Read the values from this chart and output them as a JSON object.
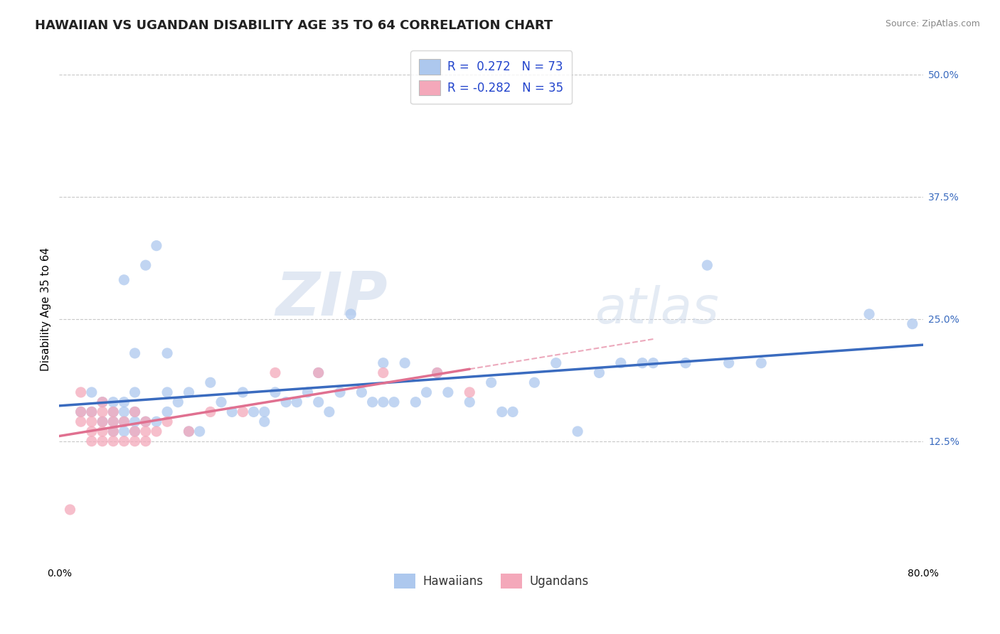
{
  "title": "HAWAIIAN VS UGANDAN DISABILITY AGE 35 TO 64 CORRELATION CHART",
  "source": "Source: ZipAtlas.com",
  "ylabel": "Disability Age 35 to 64",
  "xlim": [
    0.0,
    0.8
  ],
  "ylim": [
    0.0,
    0.52
  ],
  "yticks_right": [
    0.0,
    0.125,
    0.25,
    0.375,
    0.5
  ],
  "yticklabels_right": [
    "",
    "12.5%",
    "25.0%",
    "37.5%",
    "50.0%"
  ],
  "hawaiian_color": "#adc8ee",
  "ugandan_color": "#f4a8ba",
  "hawaiian_line_color": "#3a6bbf",
  "ugandan_line_color": "#e07090",
  "hawaiian_R": 0.272,
  "hawaiian_N": 73,
  "ugandan_R": -0.282,
  "ugandan_N": 35,
  "background_color": "#ffffff",
  "grid_color": "#c8c8c8",
  "watermark_color": "#d0d8e8",
  "hawaiian_scatter_x": [
    0.02,
    0.03,
    0.03,
    0.04,
    0.04,
    0.05,
    0.05,
    0.05,
    0.05,
    0.06,
    0.06,
    0.06,
    0.06,
    0.06,
    0.07,
    0.07,
    0.07,
    0.07,
    0.07,
    0.08,
    0.08,
    0.09,
    0.09,
    0.1,
    0.1,
    0.1,
    0.11,
    0.12,
    0.12,
    0.13,
    0.14,
    0.15,
    0.16,
    0.17,
    0.18,
    0.19,
    0.19,
    0.2,
    0.21,
    0.22,
    0.23,
    0.24,
    0.24,
    0.25,
    0.26,
    0.27,
    0.28,
    0.29,
    0.3,
    0.3,
    0.31,
    0.32,
    0.33,
    0.34,
    0.35,
    0.36,
    0.38,
    0.4,
    0.41,
    0.42,
    0.44,
    0.46,
    0.48,
    0.5,
    0.52,
    0.54,
    0.55,
    0.58,
    0.6,
    0.62,
    0.65,
    0.75,
    0.79
  ],
  "hawaiian_scatter_y": [
    0.155,
    0.155,
    0.175,
    0.145,
    0.165,
    0.135,
    0.145,
    0.155,
    0.165,
    0.135,
    0.145,
    0.155,
    0.165,
    0.29,
    0.135,
    0.145,
    0.155,
    0.175,
    0.215,
    0.145,
    0.305,
    0.145,
    0.325,
    0.155,
    0.175,
    0.215,
    0.165,
    0.135,
    0.175,
    0.135,
    0.185,
    0.165,
    0.155,
    0.175,
    0.155,
    0.145,
    0.155,
    0.175,
    0.165,
    0.165,
    0.175,
    0.165,
    0.195,
    0.155,
    0.175,
    0.255,
    0.175,
    0.165,
    0.165,
    0.205,
    0.165,
    0.205,
    0.165,
    0.175,
    0.195,
    0.175,
    0.165,
    0.185,
    0.155,
    0.155,
    0.185,
    0.205,
    0.135,
    0.195,
    0.205,
    0.205,
    0.205,
    0.205,
    0.305,
    0.205,
    0.205,
    0.255,
    0.245
  ],
  "ugandan_scatter_x": [
    0.01,
    0.02,
    0.02,
    0.02,
    0.03,
    0.03,
    0.03,
    0.03,
    0.04,
    0.04,
    0.04,
    0.04,
    0.04,
    0.05,
    0.05,
    0.05,
    0.05,
    0.06,
    0.06,
    0.07,
    0.07,
    0.07,
    0.08,
    0.08,
    0.08,
    0.09,
    0.1,
    0.12,
    0.14,
    0.17,
    0.2,
    0.24,
    0.3,
    0.35,
    0.38
  ],
  "ugandan_scatter_y": [
    0.055,
    0.145,
    0.155,
    0.175,
    0.125,
    0.135,
    0.145,
    0.155,
    0.125,
    0.135,
    0.145,
    0.155,
    0.165,
    0.125,
    0.135,
    0.145,
    0.155,
    0.125,
    0.145,
    0.125,
    0.135,
    0.155,
    0.125,
    0.135,
    0.145,
    0.135,
    0.145,
    0.135,
    0.155,
    0.155,
    0.195,
    0.195,
    0.195,
    0.195,
    0.175
  ],
  "title_fontsize": 13,
  "axis_fontsize": 11,
  "tick_fontsize": 10,
  "legend_fontsize": 12
}
